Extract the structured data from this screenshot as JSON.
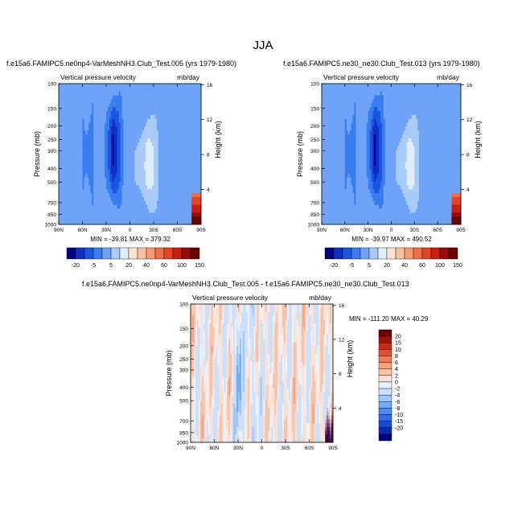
{
  "figure": {
    "title": "JJA"
  },
  "colors": {
    "top_scale": [
      "#00007f",
      "#0f2ec4",
      "#1b55e0",
      "#3a7df0",
      "#6ea3f7",
      "#a9cbfa",
      "#e0edfd",
      "#fde3d3",
      "#fbbfa3",
      "#f79873",
      "#f06e48",
      "#e34426",
      "#c8200e",
      "#970b0b",
      "#6a0000"
    ],
    "diff_scale": [
      "#00007f",
      "#0a28b5",
      "#1948d8",
      "#2f6de8",
      "#4b8cf0",
      "#73abf5",
      "#9fc6f8",
      "#cde0fb",
      "#eaf2fd",
      "#fbe1d3",
      "#f9c3a8",
      "#f6a07f",
      "#f07a58",
      "#e45132",
      "#cc2a16",
      "#a10f0a",
      "#6e0000"
    ]
  },
  "chart_data": [
    {
      "type": "heatmap",
      "case": "f.e15a6.FAMIPC5.ne0np4-VarMeshNH3.Club_Test.005 (yrs 1979-1980)",
      "left_title": "Vertical pressure velocity",
      "right_title": "mb/day",
      "ylabel": "Pressure (mb)",
      "ylabel_right": "Height (km)",
      "x_ticks": [
        "90N",
        "60N",
        "30N",
        "0",
        "30S",
        "60S",
        "90S"
      ],
      "y_ticks": [
        "100",
        "150",
        "200",
        "250",
        "300",
        "400",
        "500",
        "700",
        "850",
        "1000"
      ],
      "y_right_ticks": [
        "16",
        "12",
        "8",
        "4"
      ],
      "min_label": "MIN = -39.81   MAX = 379.32",
      "colorbar_labels": [
        "-20",
        "-5",
        "5",
        "20",
        "40",
        "60",
        "100",
        "150"
      ]
    },
    {
      "type": "heatmap",
      "case": "f.e15a6.FAMIPC5.ne30_ne30.Club_Test.013 (yrs 1979-1980)",
      "left_title": "Vertical pressure velocity",
      "right_title": "mb/day",
      "ylabel": "Pressure (mb)",
      "ylabel_right": "Height (km)",
      "x_ticks": [
        "90N",
        "60N",
        "30N",
        "0",
        "30S",
        "60S",
        "90S"
      ],
      "y_ticks": [
        "100",
        "150",
        "200",
        "250",
        "300",
        "400",
        "500",
        "700",
        "850",
        "1000"
      ],
      "y_right_ticks": [
        "16",
        "12",
        "8",
        "4"
      ],
      "min_label": "MIN = -39.97   MAX = 490.52",
      "colorbar_labels": [
        "-20",
        "-5",
        "5",
        "20",
        "40",
        "60",
        "100",
        "150"
      ]
    },
    {
      "type": "heatmap",
      "case": "f.e15a6.FAMIPC5.ne0np4-VarMeshNH3.Club_Test.005 - f.e15a6.FAMIPC5.ne30_ne30.Club_Test.013",
      "left_title": "Vertical pressure velocity",
      "right_title": "mb/day",
      "ylabel": "Pressure (mb)",
      "ylabel_right": "Height (km)",
      "x_ticks": [
        "90N",
        "60N",
        "30N",
        "0",
        "30S",
        "60S",
        "90S"
      ],
      "y_ticks": [
        "100",
        "150",
        "200",
        "250",
        "300",
        "400",
        "500",
        "700",
        "850",
        "1000"
      ],
      "y_right_ticks": [
        "16",
        "12",
        "8",
        "4"
      ],
      "min_label": "MIN = -111.20   MAX =  40.29",
      "colorbar_labels": [
        "20",
        "15",
        "10",
        "8",
        "6",
        "4",
        "2",
        "0",
        "-2",
        "-4",
        "-6",
        "-8",
        "-10",
        "-15",
        "-20"
      ]
    }
  ]
}
